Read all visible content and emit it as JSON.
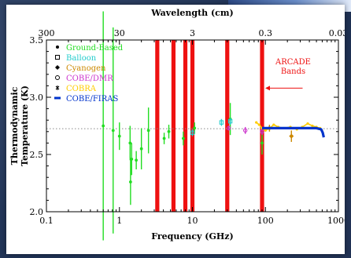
{
  "chart_data": {
    "type": "scatter",
    "title": "",
    "xlabel": "Frequency (GHz)",
    "top_xlabel": "Wavelength (cm)",
    "ylabel": "Thermodynamic Temperature (K)",
    "xscale": "log",
    "xlim": [
      0.1,
      1000
    ],
    "ylim": [
      2.0,
      3.5
    ],
    "grid": false,
    "legend_position": "top-left",
    "x_ticks": [
      0.1,
      1,
      10,
      100,
      1000
    ],
    "x_tick_labels": [
      "0.1",
      "1",
      "10",
      "100",
      "1000"
    ],
    "y_ticks": [
      2.0,
      2.5,
      3.0,
      3.5
    ],
    "y_tick_labels": [
      "2.0",
      "2.5",
      "3.0",
      "3.5"
    ],
    "top_ticks_freq_ghz": [
      0.1,
      1,
      10,
      100,
      1000
    ],
    "top_tick_labels": [
      "300",
      "30",
      "3",
      "0.3",
      "0.03"
    ],
    "reference_line": {
      "value": 2.725,
      "style": "dotted",
      "color": "#888888"
    },
    "arcade_bands": {
      "label_lines": [
        "ARCADE",
        "Bands"
      ],
      "color": "#ee1111",
      "frequencies_ghz": [
        3.3,
        5.5,
        8.0,
        10.0,
        30.0,
        90.0
      ],
      "arrow_from_ghz": 240,
      "arrow_y": 3.08
    },
    "series": [
      {
        "name": "Ground-Based",
        "marker": "filled-dot",
        "color": "#22dd22",
        "points": [
          {
            "x": 0.6,
            "y": 2.75,
            "err": 1.0
          },
          {
            "x": 0.82,
            "y": 2.71,
            "err": 0.9
          },
          {
            "x": 1.0,
            "y": 2.66,
            "err": 0.12
          },
          {
            "x": 1.4,
            "y": 2.6,
            "err": 0.15
          },
          {
            "x": 1.42,
            "y": 2.26,
            "err": 0.2
          },
          {
            "x": 1.47,
            "y": 2.46,
            "err": 0.14
          },
          {
            "x": 1.7,
            "y": 2.45,
            "err": 0.08
          },
          {
            "x": 2.0,
            "y": 2.55,
            "err": 0.18
          },
          {
            "x": 2.5,
            "y": 2.71,
            "err": 0.2
          },
          {
            "x": 4.1,
            "y": 2.64,
            "err": 0.05
          },
          {
            "x": 4.75,
            "y": 2.7,
            "err": 0.06
          },
          {
            "x": 7.5,
            "y": 2.64,
            "err": 0.06
          },
          {
            "x": 10.7,
            "y": 2.73,
            "err": 0.05
          },
          {
            "x": 33.0,
            "y": 2.81,
            "err": 0.14
          },
          {
            "x": 90.0,
            "y": 2.6,
            "err": 0.1
          }
        ]
      },
      {
        "name": "Balloon",
        "marker": "open-square",
        "color": "#22cccc",
        "points": [
          {
            "x": 10.0,
            "y": 2.69,
            "err": 0.03
          },
          {
            "x": 25.0,
            "y": 2.78,
            "err": 0.03
          },
          {
            "x": 33.0,
            "y": 2.79,
            "err": 0.03
          }
        ]
      },
      {
        "name": "Cyanogen",
        "marker": "diamond",
        "color": "#cc8800",
        "points": [
          {
            "x": 113.6,
            "y": 2.73,
            "err": 0.03
          },
          {
            "x": 227.0,
            "y": 2.66,
            "err": 0.05
          }
        ]
      },
      {
        "name": "COBE/DMR",
        "marker": "open-circle",
        "color": "#cc33cc",
        "points": [
          {
            "x": 31.5,
            "y": 2.73,
            "err": 0.02
          },
          {
            "x": 53.0,
            "y": 2.71,
            "err": 0.03
          },
          {
            "x": 90.0,
            "y": 2.7,
            "err": 0.03
          }
        ]
      },
      {
        "name": "COBRA",
        "marker": "star",
        "color": "#ffcc00",
        "points": [
          {
            "x": 75,
            "y": 2.78
          },
          {
            "x": 82,
            "y": 2.76
          },
          {
            "x": 90,
            "y": 2.73
          },
          {
            "x": 100,
            "y": 2.71
          },
          {
            "x": 115,
            "y": 2.73
          },
          {
            "x": 130,
            "y": 2.76
          },
          {
            "x": 150,
            "y": 2.74
          },
          {
            "x": 180,
            "y": 2.73
          },
          {
            "x": 220,
            "y": 2.74
          },
          {
            "x": 270,
            "y": 2.72
          },
          {
            "x": 320,
            "y": 2.74
          },
          {
            "x": 380,
            "y": 2.77
          },
          {
            "x": 440,
            "y": 2.75
          },
          {
            "x": 500,
            "y": 2.74
          },
          {
            "x": 560,
            "y": 2.73
          }
        ]
      },
      {
        "name": "COBE/FIRAS",
        "marker": "thick-line",
        "color": "#0033cc",
        "points": [
          {
            "x": 90,
            "y": 2.73
          },
          {
            "x": 150,
            "y": 2.73
          },
          {
            "x": 300,
            "y": 2.73
          },
          {
            "x": 500,
            "y": 2.73
          },
          {
            "x": 580,
            "y": 2.72
          },
          {
            "x": 610,
            "y": 2.69
          },
          {
            "x": 630,
            "y": 2.65
          }
        ]
      }
    ]
  }
}
